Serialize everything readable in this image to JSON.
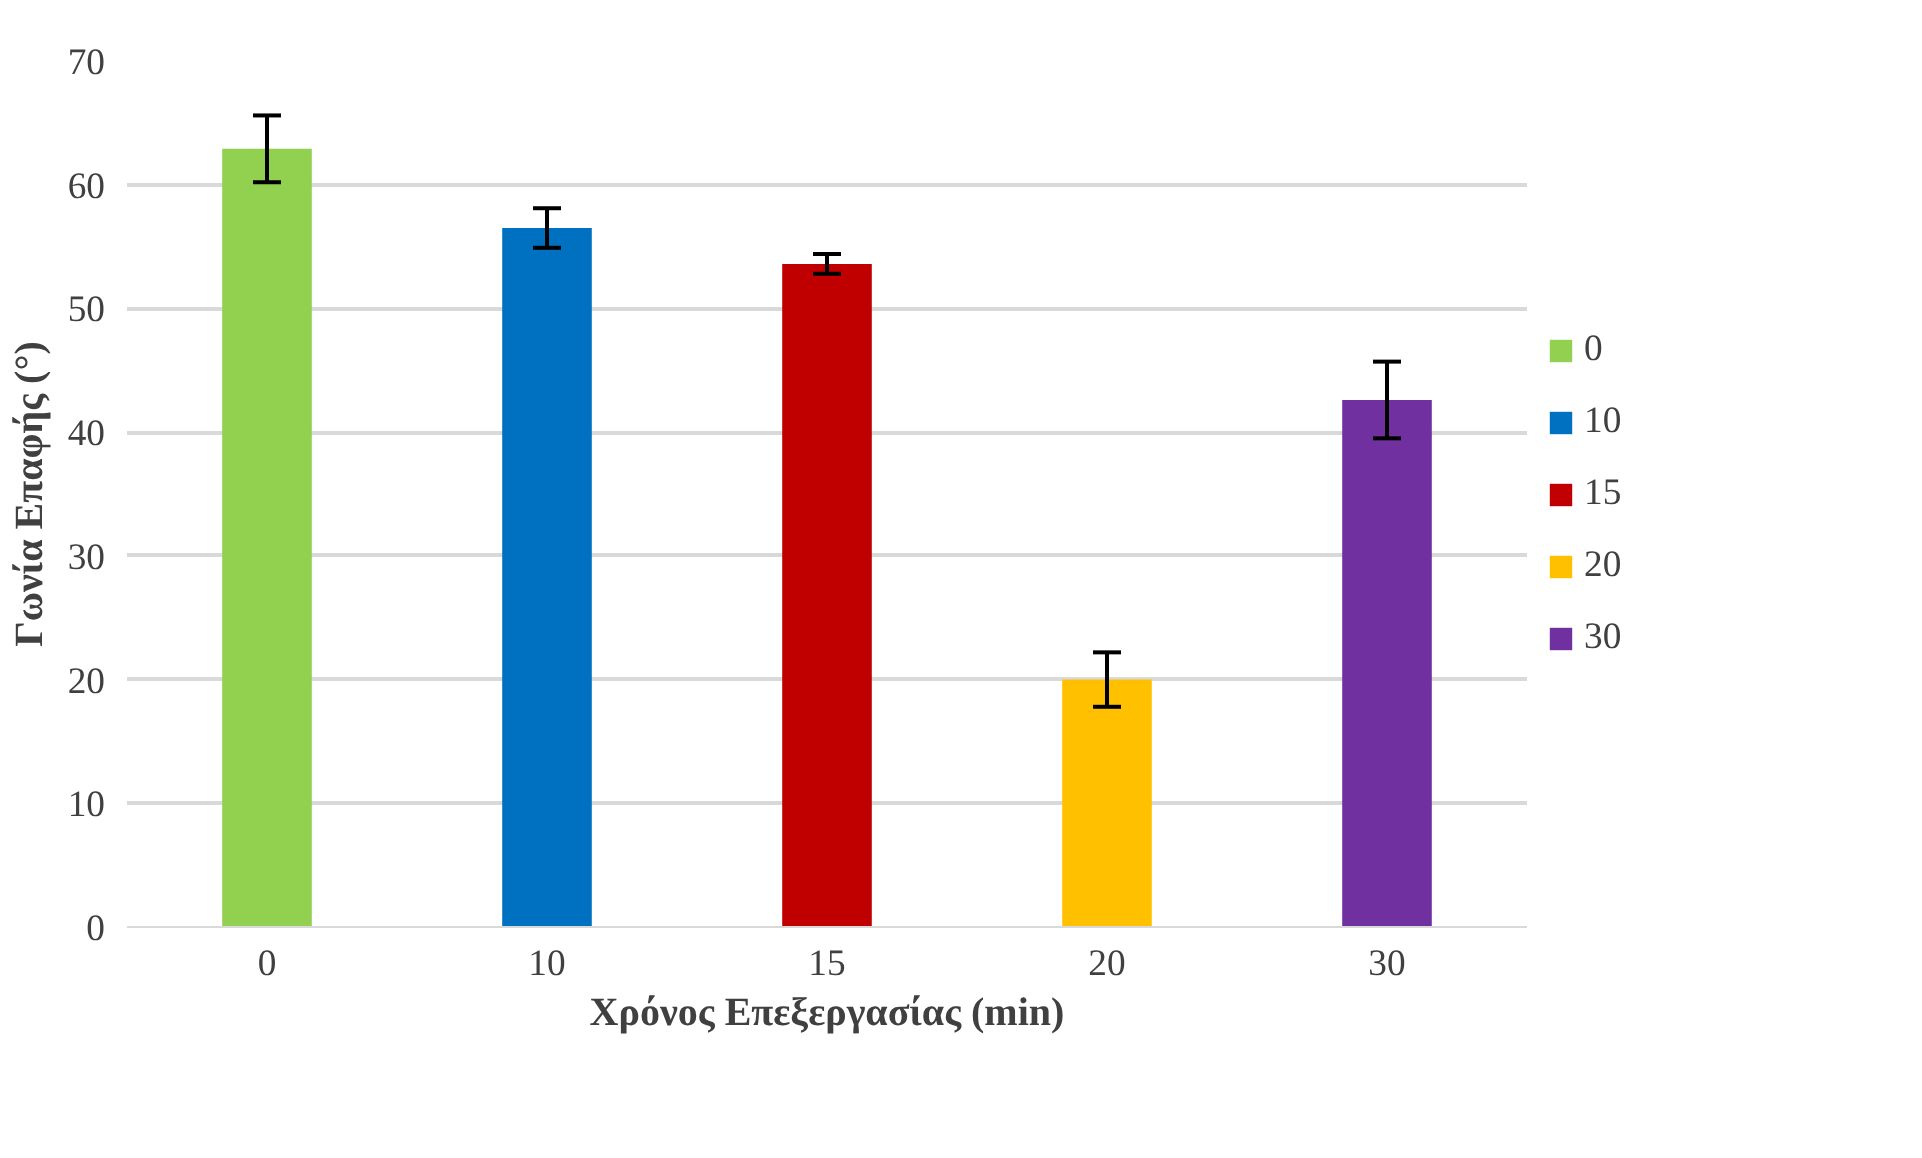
{
  "chart_data": {
    "type": "bar",
    "xlabel": "Χρόνος Επεξεργασίας (min)",
    "ylabel": "Γωνία Επαφής (°)",
    "categories": [
      "0",
      "10",
      "15",
      "20",
      "30"
    ],
    "series": [
      {
        "name": "0",
        "color": "#92d050",
        "values": [
          62.9,
          null,
          null,
          null,
          null
        ],
        "errors": [
          2.7,
          null,
          null,
          null,
          null
        ]
      },
      {
        "name": "10",
        "color": "#0070c0",
        "values": [
          null,
          56.5,
          null,
          null,
          null
        ],
        "errors": [
          null,
          1.6,
          null,
          null,
          null
        ]
      },
      {
        "name": "15",
        "color": "#c00000",
        "values": [
          null,
          null,
          53.6,
          null,
          null
        ],
        "errors": [
          null,
          null,
          0.8,
          null,
          null
        ]
      },
      {
        "name": "20",
        "color": "#ffc000",
        "values": [
          null,
          null,
          null,
          20.0,
          null
        ],
        "errors": [
          null,
          null,
          null,
          2.2,
          null
        ]
      },
      {
        "name": "30",
        "color": "#7030a0",
        "values": [
          null,
          null,
          null,
          null,
          42.6
        ],
        "errors": [
          null,
          null,
          null,
          null,
          3.1
        ]
      }
    ],
    "ylim": [
      0,
      70
    ],
    "yticks": [
      0,
      10,
      20,
      30,
      40,
      50,
      60,
      70
    ],
    "grid": "y",
    "legend": "right"
  }
}
